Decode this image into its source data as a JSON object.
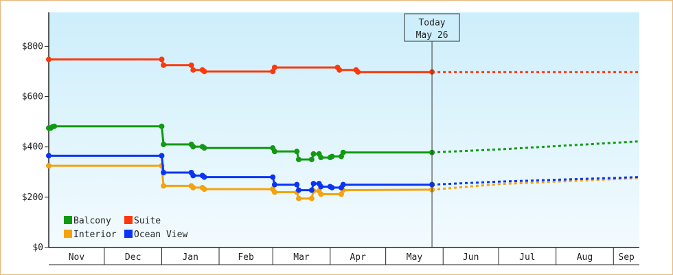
{
  "chart_data": {
    "type": "line",
    "title": "",
    "xlabel": "",
    "ylabel": "",
    "y_ticks": [
      "$0",
      "$200",
      "$400",
      "$600",
      "$800"
    ],
    "y_tick_values": [
      0,
      200,
      400,
      600,
      800
    ],
    "ylim": [
      0,
      935
    ],
    "x_months": [
      "Nov",
      "Dec",
      "Jan",
      "Feb",
      "Mar",
      "Apr",
      "May",
      "Jun",
      "Jul",
      "Aug",
      "Sep"
    ],
    "x_month_boundaries": [
      "2023-11-01",
      "2023-12-01",
      "2024-01-01",
      "2024-02-01",
      "2024-03-01",
      "2024-04-01",
      "2024-05-01",
      "2024-06-01",
      "2024-07-01",
      "2024-08-01",
      "2024-09-01",
      "2024-09-15"
    ],
    "xlim": [
      "2023-11-01",
      "2024-09-15"
    ],
    "today": {
      "label": "Today",
      "date_label": "May 26",
      "date": "2024-05-26"
    },
    "legend_position": "bottom-left",
    "series": [
      {
        "name": "Balcony",
        "color": "#129912",
        "points": [
          [
            "2023-11-01",
            475
          ],
          [
            "2023-11-02",
            475
          ],
          [
            "2023-11-03",
            480
          ],
          [
            "2023-11-04",
            482
          ],
          [
            "2024-01-01",
            482
          ],
          [
            "2024-01-02",
            410
          ],
          [
            "2024-01-17",
            410
          ],
          [
            "2024-01-18",
            401
          ],
          [
            "2024-01-23",
            401
          ],
          [
            "2024-01-24",
            396
          ],
          [
            "2024-03-01",
            396
          ],
          [
            "2024-03-02",
            382
          ],
          [
            "2024-03-14",
            382
          ],
          [
            "2024-03-15",
            350
          ],
          [
            "2024-03-22",
            350
          ],
          [
            "2024-03-23",
            372
          ],
          [
            "2024-03-26",
            372
          ],
          [
            "2024-03-27",
            358
          ],
          [
            "2024-04-01",
            358
          ],
          [
            "2024-04-02",
            362
          ],
          [
            "2024-04-07",
            362
          ],
          [
            "2024-04-08",
            378
          ],
          [
            "2024-05-26",
            378
          ]
        ],
        "forecast": [
          [
            "2024-05-26",
            378
          ],
          [
            "2024-07-01",
            390
          ],
          [
            "2024-09-15",
            422
          ]
        ]
      },
      {
        "name": "Suite",
        "color": "#fa3a0c",
        "points": [
          [
            "2023-11-01",
            748
          ],
          [
            "2024-01-01",
            748
          ],
          [
            "2024-01-02",
            725
          ],
          [
            "2024-01-17",
            725
          ],
          [
            "2024-01-18",
            706
          ],
          [
            "2024-01-23",
            706
          ],
          [
            "2024-01-24",
            700
          ],
          [
            "2024-03-01",
            700
          ],
          [
            "2024-03-02",
            716
          ],
          [
            "2024-04-05",
            716
          ],
          [
            "2024-04-06",
            706
          ],
          [
            "2024-04-15",
            706
          ],
          [
            "2024-04-16",
            698
          ],
          [
            "2024-05-26",
            698
          ]
        ],
        "forecast": [
          [
            "2024-05-26",
            698
          ],
          [
            "2024-09-15",
            698
          ]
        ]
      },
      {
        "name": "Interior",
        "color": "#f5a20f",
        "points": [
          [
            "2023-11-01",
            325
          ],
          [
            "2024-01-01",
            325
          ],
          [
            "2024-01-02",
            245
          ],
          [
            "2024-01-17",
            245
          ],
          [
            "2024-01-18",
            238
          ],
          [
            "2024-01-23",
            238
          ],
          [
            "2024-01-24",
            232
          ],
          [
            "2024-03-01",
            232
          ],
          [
            "2024-03-02",
            220
          ],
          [
            "2024-03-14",
            220
          ],
          [
            "2024-03-15",
            195
          ],
          [
            "2024-03-22",
            195
          ],
          [
            "2024-03-23",
            225
          ],
          [
            "2024-03-26",
            225
          ],
          [
            "2024-03-27",
            212
          ],
          [
            "2024-04-07",
            212
          ],
          [
            "2024-04-08",
            228
          ],
          [
            "2024-05-26",
            230
          ]
        ],
        "forecast": [
          [
            "2024-05-26",
            230
          ],
          [
            "2024-07-01",
            252
          ],
          [
            "2024-09-15",
            276
          ]
        ]
      },
      {
        "name": "Ocean View",
        "color": "#0a34f5",
        "points": [
          [
            "2023-11-01",
            365
          ],
          [
            "2024-01-01",
            365
          ],
          [
            "2024-01-02",
            298
          ],
          [
            "2024-01-17",
            298
          ],
          [
            "2024-01-18",
            286
          ],
          [
            "2024-01-23",
            286
          ],
          [
            "2024-01-24",
            280
          ],
          [
            "2024-03-01",
            280
          ],
          [
            "2024-03-02",
            250
          ],
          [
            "2024-03-14",
            250
          ],
          [
            "2024-03-15",
            228
          ],
          [
            "2024-03-22",
            228
          ],
          [
            "2024-03-23",
            254
          ],
          [
            "2024-03-26",
            254
          ],
          [
            "2024-03-27",
            242
          ],
          [
            "2024-04-01",
            242
          ],
          [
            "2024-04-02",
            238
          ],
          [
            "2024-04-07",
            238
          ],
          [
            "2024-04-08",
            250
          ],
          [
            "2024-05-26",
            250
          ]
        ],
        "forecast": [
          [
            "2024-05-26",
            250
          ],
          [
            "2024-07-01",
            262
          ],
          [
            "2024-09-15",
            280
          ]
        ]
      }
    ],
    "colors": {
      "plot_top": "#cdeefb",
      "plot_bottom": "#f3fbfe",
      "frame": "#e8b679",
      "today_line": "#333333"
    }
  }
}
